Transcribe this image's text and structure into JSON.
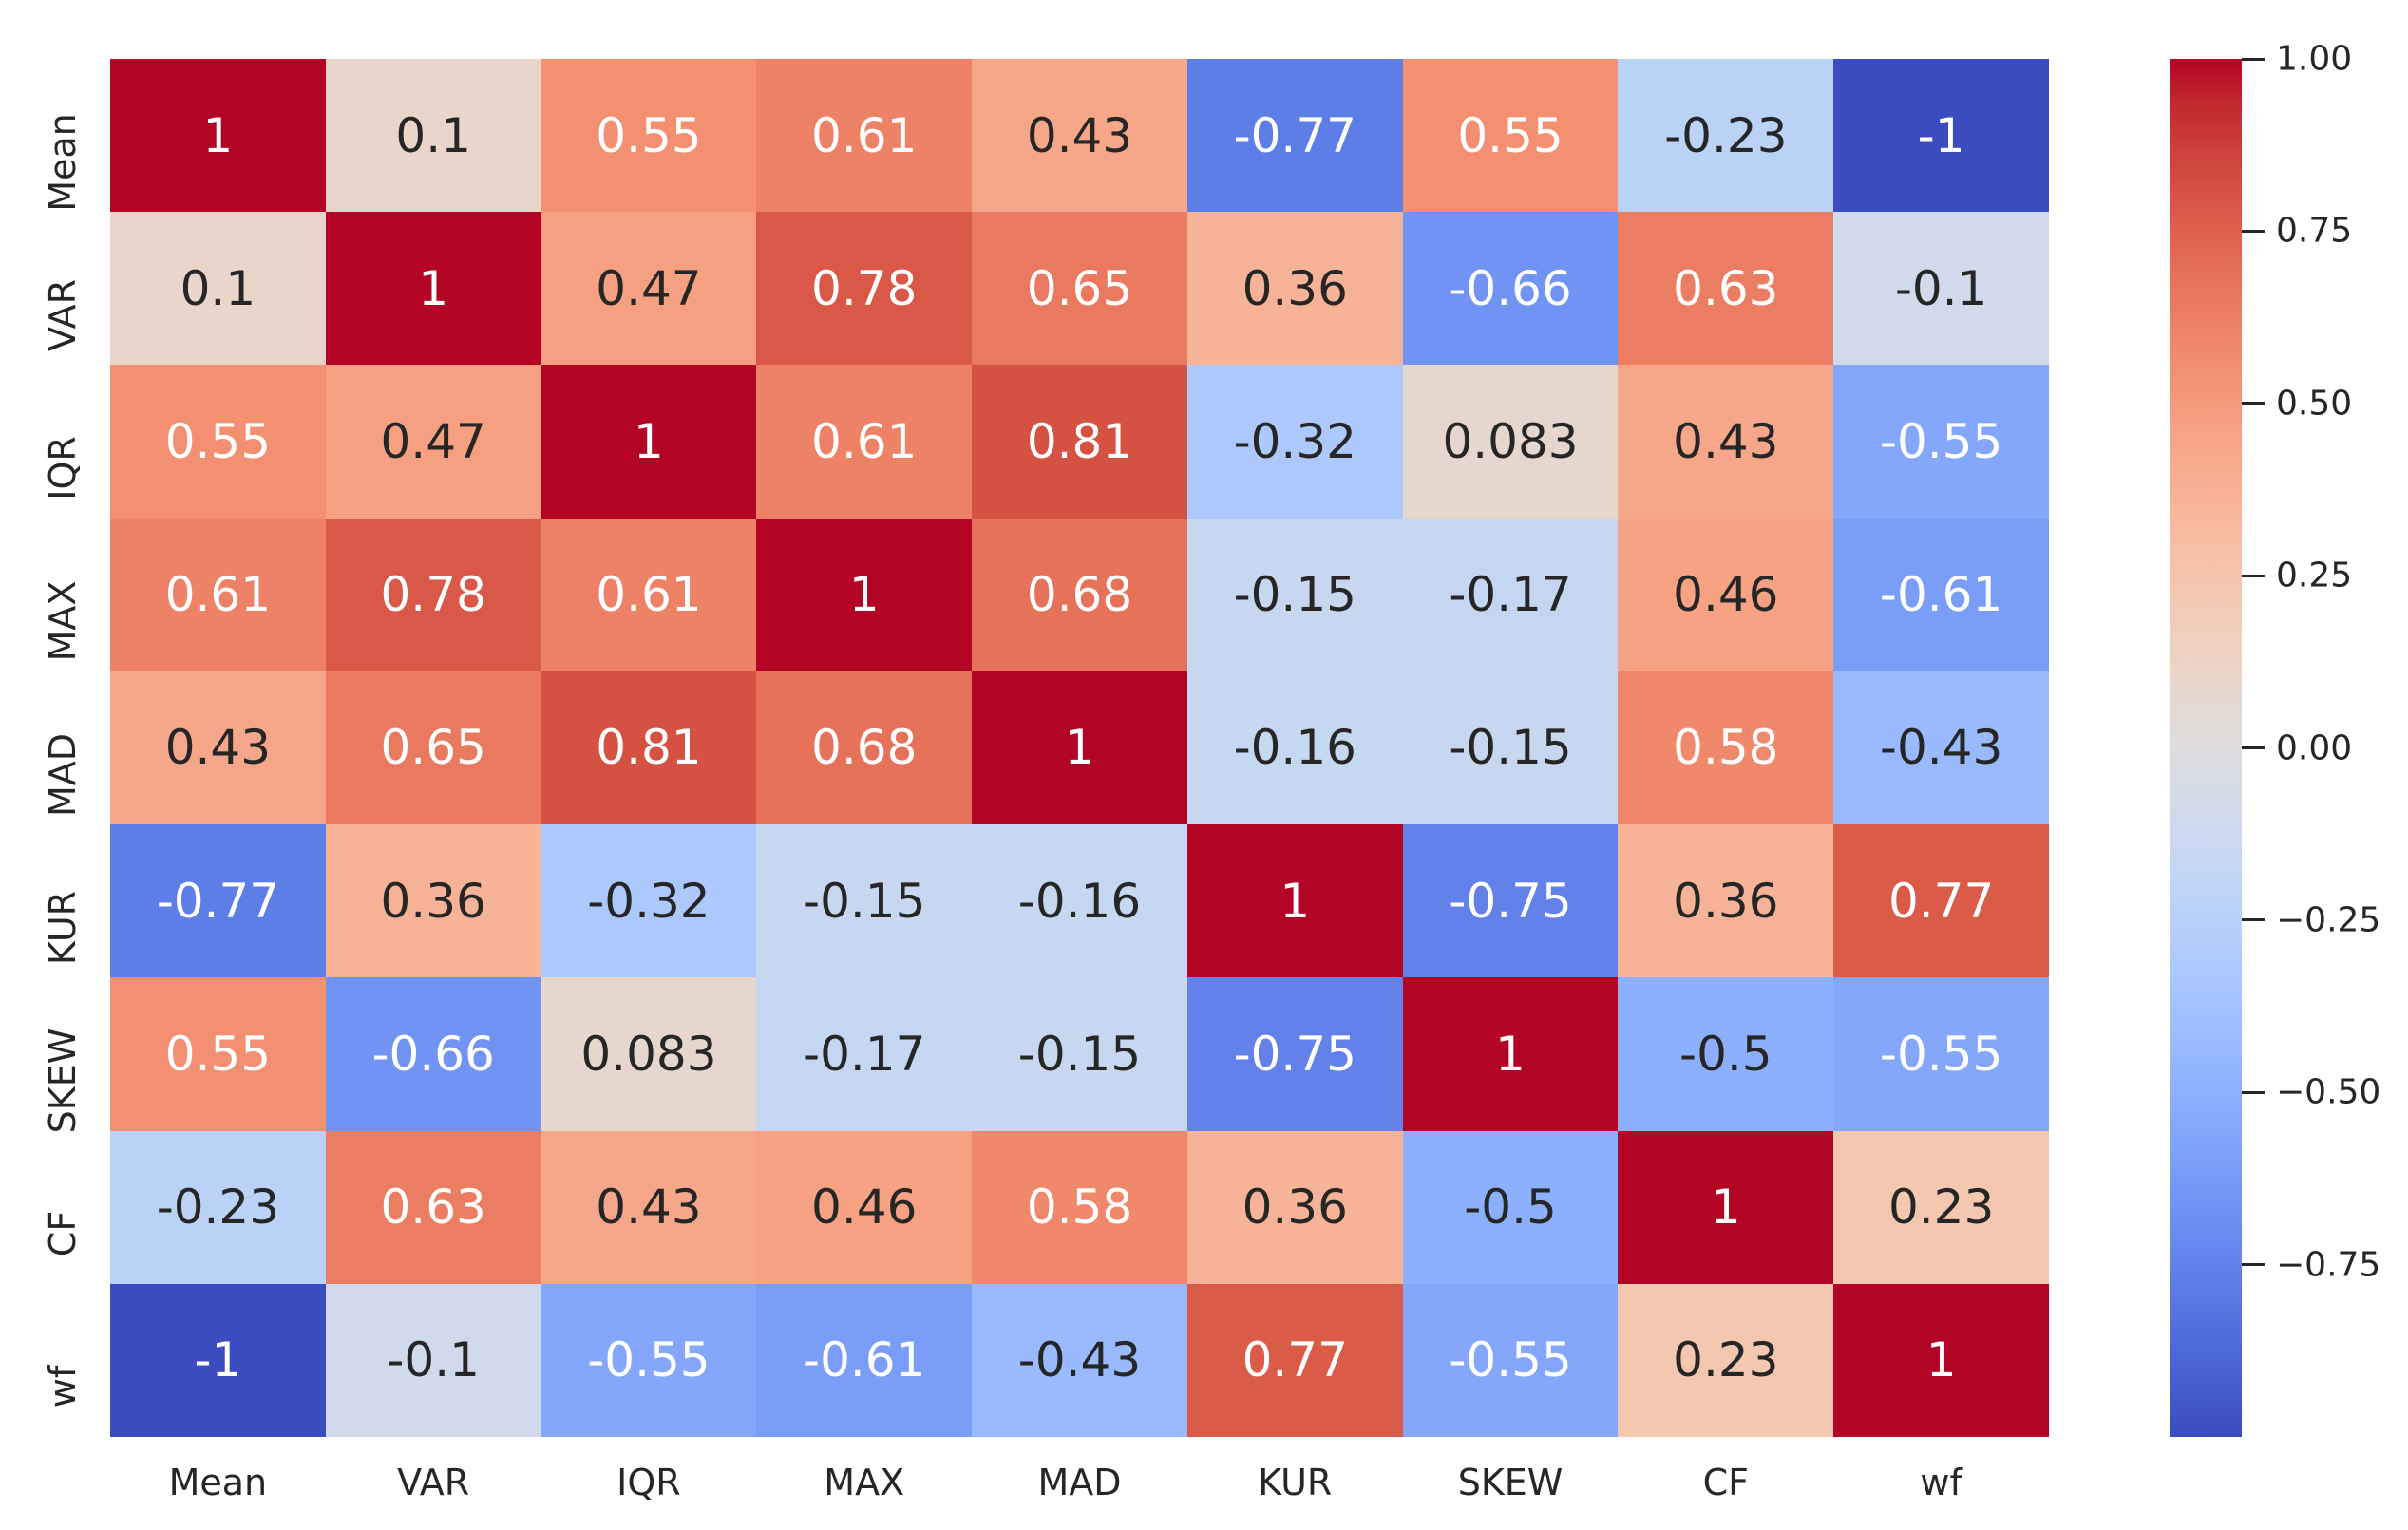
{
  "chart_data": {
    "type": "heatmap",
    "title": "",
    "categories": [
      "Mean",
      "VAR",
      "IQR",
      "MAX",
      "MAD",
      "KUR",
      "SKEW",
      "CF",
      "wf"
    ],
    "row_labels": [
      "Mean",
      "VAR",
      "IQR",
      "MAX",
      "MAD",
      "KUR",
      "SKEW",
      "CF",
      "wf"
    ],
    "col_labels": [
      "Mean",
      "VAR",
      "IQR",
      "MAX",
      "MAD",
      "KUR",
      "SKEW",
      "CF",
      "wf"
    ],
    "matrix": [
      [
        1,
        0.1,
        0.55,
        0.61,
        0.43,
        -0.77,
        0.55,
        -0.23,
        -1
      ],
      [
        0.1,
        1,
        0.47,
        0.78,
        0.65,
        0.36,
        -0.66,
        0.63,
        -0.1
      ],
      [
        0.55,
        0.47,
        1,
        0.61,
        0.81,
        -0.32,
        0.083,
        0.43,
        -0.55
      ],
      [
        0.61,
        0.78,
        0.61,
        1,
        0.68,
        -0.15,
        -0.17,
        0.46,
        -0.61
      ],
      [
        0.43,
        0.65,
        0.81,
        0.68,
        1,
        -0.16,
        -0.15,
        0.58,
        -0.43
      ],
      [
        -0.77,
        0.36,
        -0.32,
        -0.15,
        -0.16,
        1,
        -0.75,
        0.36,
        0.77
      ],
      [
        0.55,
        -0.66,
        0.083,
        -0.17,
        -0.15,
        -0.75,
        1,
        -0.5,
        -0.55
      ],
      [
        -0.23,
        0.63,
        0.43,
        0.46,
        0.58,
        0.36,
        -0.5,
        1,
        0.23
      ],
      [
        -1,
        -0.1,
        -0.55,
        -0.61,
        -0.43,
        0.77,
        -0.55,
        0.23,
        1
      ]
    ],
    "cell_annotations": [
      [
        "1",
        "0.1",
        "0.55",
        "0.61",
        "0.43",
        "-0.77",
        "0.55",
        "-0.23",
        "-1"
      ],
      [
        "0.1",
        "1",
        "0.47",
        "0.78",
        "0.65",
        "0.36",
        "-0.66",
        "0.63",
        "-0.1"
      ],
      [
        "0.55",
        "0.47",
        "1",
        "0.61",
        "0.81",
        "-0.32",
        "0.083",
        "0.43",
        "-0.55"
      ],
      [
        "0.61",
        "0.78",
        "0.61",
        "1",
        "0.68",
        "-0.15",
        "-0.17",
        "0.46",
        "-0.61"
      ],
      [
        "0.43",
        "0.65",
        "0.81",
        "0.68",
        "1",
        "-0.16",
        "-0.15",
        "0.58",
        "-0.43"
      ],
      [
        "-0.77",
        "0.36",
        "-0.32",
        "-0.15",
        "-0.16",
        "1",
        "-0.75",
        "0.36",
        "0.77"
      ],
      [
        "0.55",
        "-0.66",
        "0.083",
        "-0.17",
        "-0.15",
        "-0.75",
        "1",
        "-0.5",
        "-0.55"
      ],
      [
        "-0.23",
        "0.63",
        "0.43",
        "0.46",
        "0.58",
        "0.36",
        "-0.5",
        "1",
        "0.23"
      ],
      [
        "-1",
        "-0.1",
        "-0.55",
        "-0.61",
        "-0.43",
        "0.77",
        "-0.55",
        "0.23",
        "1"
      ]
    ],
    "colormap": "coolwarm",
    "vmin": -1,
    "vmax": 1,
    "colorbar": {
      "position": "right",
      "tick_labels": [
        "1.00",
        "0.75",
        "0.50",
        "0.25",
        "0.00",
        "−0.25",
        "−0.50",
        "−0.75"
      ],
      "tick_values": [
        1.0,
        0.75,
        0.5,
        0.25,
        0.0,
        -0.25,
        -0.5,
        -0.75
      ]
    },
    "grid": false,
    "legend": false,
    "xlabel": "",
    "ylabel": ""
  },
  "colors": {
    "background": "#ffffff",
    "cmap_low": "#3b4cc0",
    "cmap_mid": "#dddddd",
    "cmap_high": "#b40426",
    "annotation_dark": "#262626",
    "annotation_light": "#ffffff",
    "tick_color": "#262626"
  }
}
